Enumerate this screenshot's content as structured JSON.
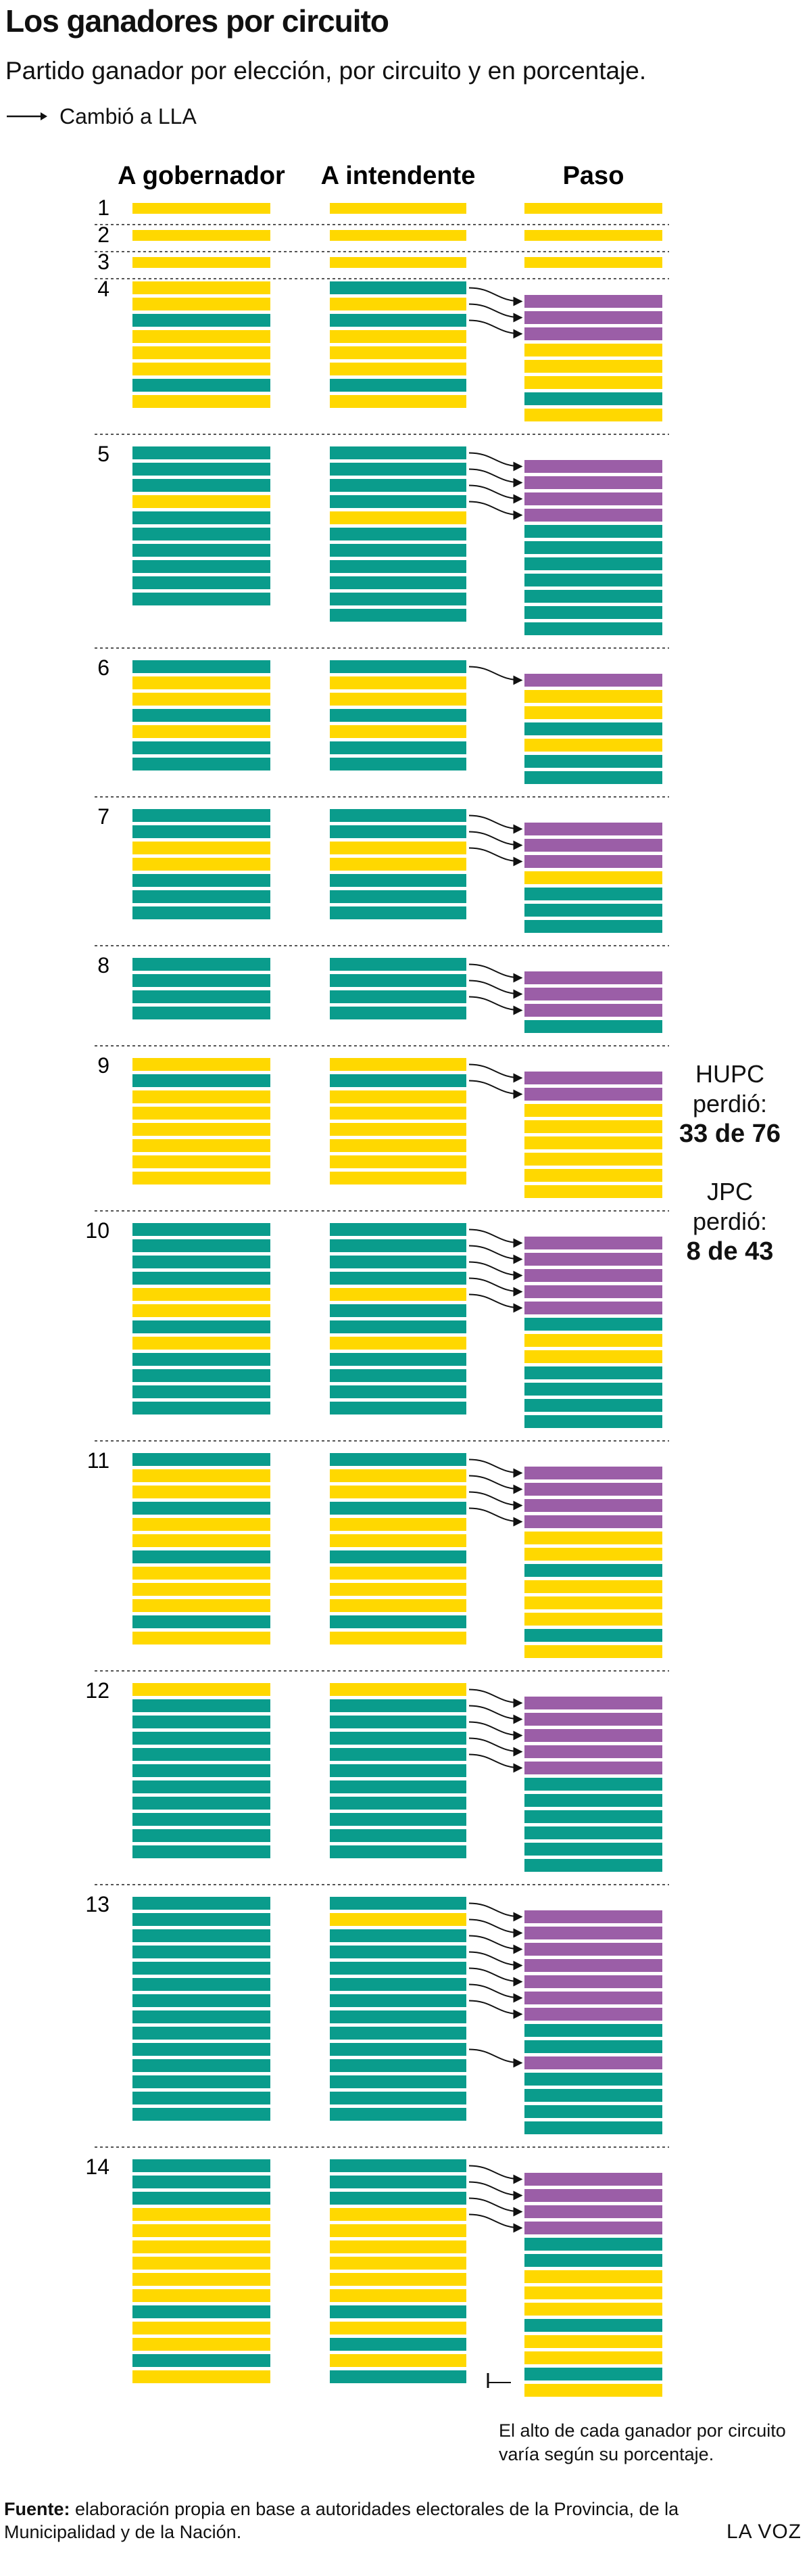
{
  "header": {
    "title": "Los ganadores por circuito",
    "subtitle": "Partido ganador por elección, por circuito y en porcentaje.",
    "legend_label": "Cambió a LLA"
  },
  "colors": {
    "teal": "#0a9c8c",
    "yellow": "#ffd800",
    "purple": "#9b5ea7",
    "divider": "#555555",
    "arrow": "#111111"
  },
  "chart_data": {
    "type": "table",
    "columns": [
      "A gobernador",
      "A intendente",
      "Paso"
    ],
    "circuits": [
      {
        "id": "1",
        "gobernador": "Y",
        "intendente": "Y",
        "paso": "Y"
      },
      {
        "id": "2",
        "gobernador": "Y",
        "intendente": "Y",
        "paso": "Y"
      },
      {
        "id": "3",
        "gobernador": "Y",
        "intendente": "Y",
        "paso": "Y"
      },
      {
        "id": "4",
        "gobernador": "YYTYYYTY",
        "intendente": "TYTYYYTY",
        "paso": "PPPYYYTY"
      },
      {
        "id": "5",
        "gobernador": "TTTYTTTTTT",
        "intendente": "TTTTYTTTTTT",
        "paso": "PPPPTTTTTTT"
      },
      {
        "id": "6",
        "gobernador": "TYYTYTT",
        "intendente": "TYYTYTT",
        "paso": "PYYTYTT"
      },
      {
        "id": "7",
        "gobernador": "TTYYTTT",
        "intendente": "TTYYTTT",
        "paso": "PPPYTTT"
      },
      {
        "id": "8",
        "gobernador": "TTTT",
        "intendente": "TTTT",
        "paso": "PPPT"
      },
      {
        "id": "9",
        "gobernador": "YTYYYYYY",
        "intendente": "YTYYYYYY",
        "paso": "PPYYYYYY"
      },
      {
        "id": "10",
        "gobernador": "TTTTYYTYTTTT",
        "intendente": "TTTTYTTYTTTT",
        "paso": "PPPPPTYYTTTT"
      },
      {
        "id": "11",
        "gobernador": "TYYTYYTYYYTY",
        "intendente": "TYYTYYTYYYTY",
        "paso": "PPPPYYTYYYTY"
      },
      {
        "id": "12",
        "gobernador": "YTTTTTTTTTT",
        "intendente": "YTTTTTTTTTT",
        "paso": "PPPPPTTTTTT"
      },
      {
        "id": "13",
        "gobernador": "TTTTTTTTTTTTTT",
        "intendente": "TYTTTTTTTTTTTT",
        "paso": "PPPPPPPTTPTTTT"
      },
      {
        "id": "14",
        "gobernador": "TTTYYYYYYTYYTY",
        "intendente": "TTTYYYYYYTYTYT",
        "paso": "PPPPTTYYYTYYTY"
      }
    ],
    "color_codes": {
      "T": "teal",
      "Y": "yellow",
      "P": "purple"
    }
  },
  "summary": [
    {
      "party": "HUPC",
      "verb": "perdió:",
      "value": "33 de 76"
    },
    {
      "party": "JPC",
      "verb": "perdió:",
      "value": "8 de 43"
    }
  ],
  "note": "El alto de cada ganador por circuito varía según su porcentaje.",
  "footer": {
    "source_label": "Fuente:",
    "source_text": "elaboración propia en base a autoridades electorales de la Provincia, de la Municipalidad y de la Nación.",
    "brand": "LA VOZ"
  }
}
